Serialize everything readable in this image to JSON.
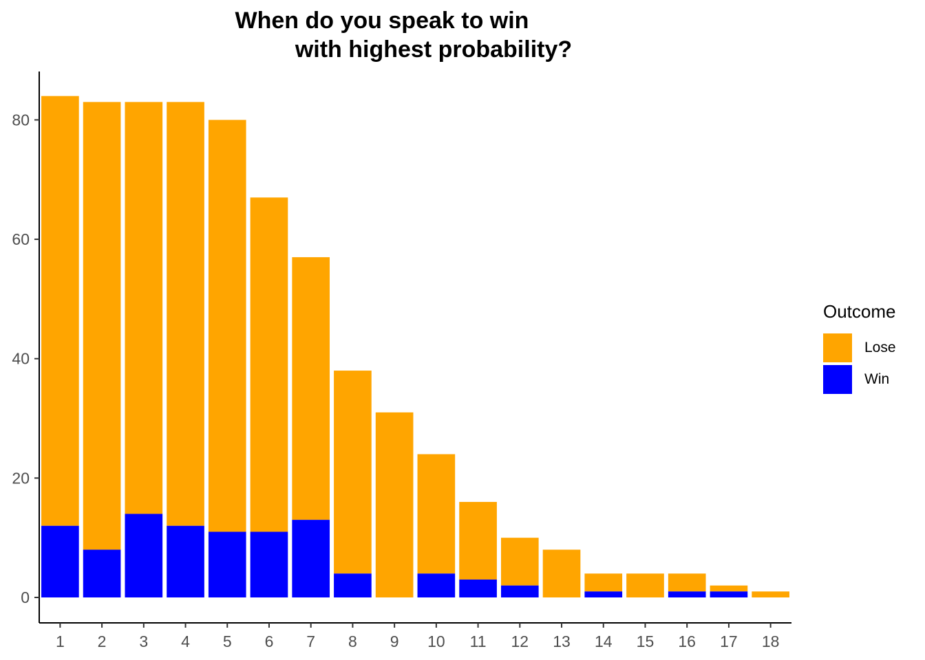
{
  "chart_data": {
    "type": "bar",
    "stacked": true,
    "title": "When do you speak to win\nwith highest probability?",
    "title_lines": [
      "When do you speak to win",
      "with highest probability?"
    ],
    "xlabel": "",
    "ylabel": "",
    "categories": [
      "1",
      "2",
      "3",
      "4",
      "5",
      "6",
      "7",
      "8",
      "9",
      "10",
      "11",
      "12",
      "13",
      "14",
      "15",
      "16",
      "17",
      "18"
    ],
    "ylim": [
      -4,
      88
    ],
    "yticks": [
      0,
      20,
      40,
      60,
      80
    ],
    "grid": false,
    "legend": {
      "title": "Outcome",
      "placement": "right"
    },
    "series": [
      {
        "name": "Win",
        "color": "#0000ff",
        "values": [
          12,
          8,
          14,
          12,
          11,
          11,
          13,
          4,
          0,
          4,
          3,
          2,
          0,
          1,
          0,
          1,
          1,
          0
        ]
      },
      {
        "name": "Lose",
        "color": "#ffa500",
        "values": [
          72,
          75,
          69,
          71,
          69,
          56,
          44,
          34,
          31,
          20,
          13,
          8,
          8,
          3,
          4,
          3,
          1,
          1
        ]
      }
    ],
    "legend_order": [
      "Lose",
      "Win"
    ]
  }
}
